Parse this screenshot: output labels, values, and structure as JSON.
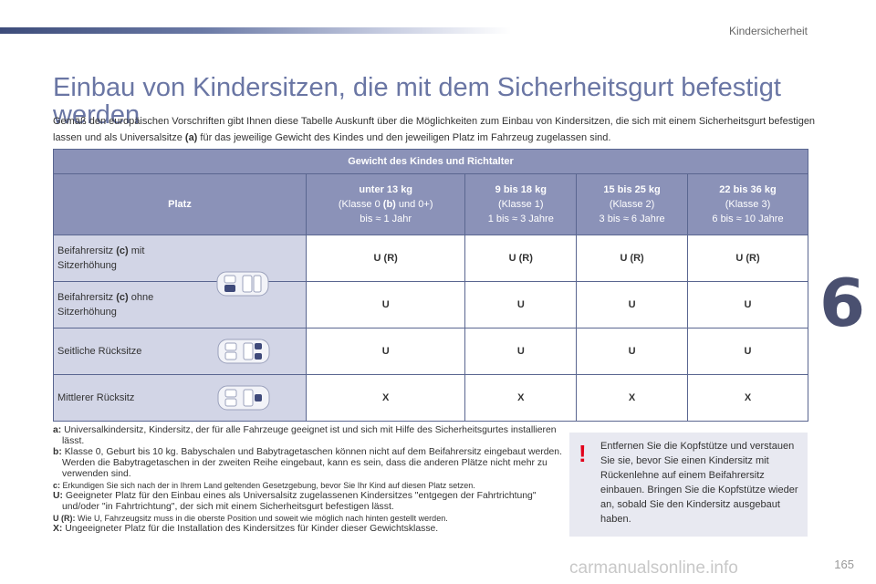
{
  "header": {
    "section": "Kindersicherheit"
  },
  "title": "Einbau von Kindersitzen, die mit dem Sicherheitsgurt befestigt werden",
  "intro": {
    "part1": "Gemäß den europäischen Vorschriften gibt Ihnen diese Tabelle Auskunft über die Möglichkeiten zum Einbau von Kindersitzen, die sich mit einem Sicherheitsgurt befestigen lassen und als Universalsitze ",
    "bold": "(a)",
    "part2": " für das jeweilige Gewicht des Kindes und den jeweiligen Platz im Fahrzeug zugelassen sind."
  },
  "chapter": "6",
  "table": {
    "top_header": "Gewicht des Kindes und Richtalter",
    "platz_header": "Platz",
    "columns": [
      {
        "weight": "unter 13 kg",
        "class_pre": "(Klasse 0 ",
        "class_bold": "(b)",
        "class_post": " und 0+)",
        "age": "bis ≈ 1 Jahr"
      },
      {
        "weight": "9 bis 18 kg",
        "class_pre": "(Klasse 1)",
        "class_bold": "",
        "class_post": "",
        "age": "1 bis ≈ 3 Jahre"
      },
      {
        "weight": "15 bis 25 kg",
        "class_pre": "(Klasse 2)",
        "class_bold": "",
        "class_post": "",
        "age": "3 bis ≈ 6 Jahre"
      },
      {
        "weight": "22 bis 36 kg",
        "class_pre": "(Klasse 3)",
        "class_bold": "",
        "class_post": "",
        "age": "6 bis ≈ 10 Jahre"
      }
    ],
    "rows": [
      {
        "label_pre": "Beifahrersitz ",
        "label_bold": "(c)",
        "label_post": " mit Sitzerhöhung",
        "values": [
          "U (R)",
          "U (R)",
          "U (R)",
          "U (R)"
        ]
      },
      {
        "label_pre": "Beifahrersitz ",
        "label_bold": "(c)",
        "label_post": " ohne Sitzerhöhung",
        "values": [
          "U",
          "U",
          "U",
          "U"
        ]
      },
      {
        "label_pre": "Seitliche Rücksitze",
        "label_bold": "",
        "label_post": "",
        "values": [
          "U",
          "U",
          "U",
          "U"
        ]
      },
      {
        "label_pre": "Mittlerer Rücksitz",
        "label_bold": "",
        "label_post": "",
        "values": [
          "X",
          "X",
          "X",
          "X"
        ]
      }
    ]
  },
  "notes": [
    {
      "key": "a:",
      "text": " Universalkindersitz, Kindersitz, der für alle Fahrzeuge geeignet ist und sich mit Hilfe des Sicherheitsgurtes installieren lässt."
    },
    {
      "key": "b:",
      "text": " Klasse 0, Geburt bis 10 kg. Babyschalen und Babytragetaschen können nicht auf dem Beifahrersitz eingebaut werden. Werden die Babytragetaschen in der zweiten Reihe eingebaut, kann es sein, dass die anderen Plätze nicht mehr zu verwenden sind."
    },
    {
      "key": "c:",
      "text": " Erkundigen Sie sich nach der in Ihrem Land geltenden Gesetzgebung, bevor Sie Ihr Kind auf diesen Platz setzen."
    },
    {
      "key": "U:",
      "text": " Geeigneter Platz für den Einbau eines als Universalsitz zugelassenen Kindersitzes \"entgegen der Fahrtrichtung\" und/oder \"in Fahrtrichtung\", der sich mit einem Sicherheitsgurt befestigen lässt."
    },
    {
      "key": "U (R):",
      "text": " Wie U, Fahrzeugsitz muss in die oberste Position und soweit wie möglich nach hinten gestellt werden."
    },
    {
      "key": "X:",
      "text": " Ungeeigneter Platz für die Installation des Kindersitzes für Kinder dieser Gewichtsklasse."
    }
  ],
  "warning": {
    "mark": "!",
    "text": "Entfernen Sie die Kopfstütze und verstauen Sie sie, bevor Sie einen Kindersitz mit Rückenlehne auf einem Beifahrersitz einbauen. Bringen Sie die Kopfstütze wieder an, sobald Sie den Kindersitz ausgebaut haben."
  },
  "page_number": "165",
  "watermark": "carmanualsonline.info",
  "colors": {
    "accent": "#6a76a4",
    "header_bg": "#8b92b8",
    "label_bg": "#d2d5e6",
    "warning_red": "#e2001a"
  }
}
